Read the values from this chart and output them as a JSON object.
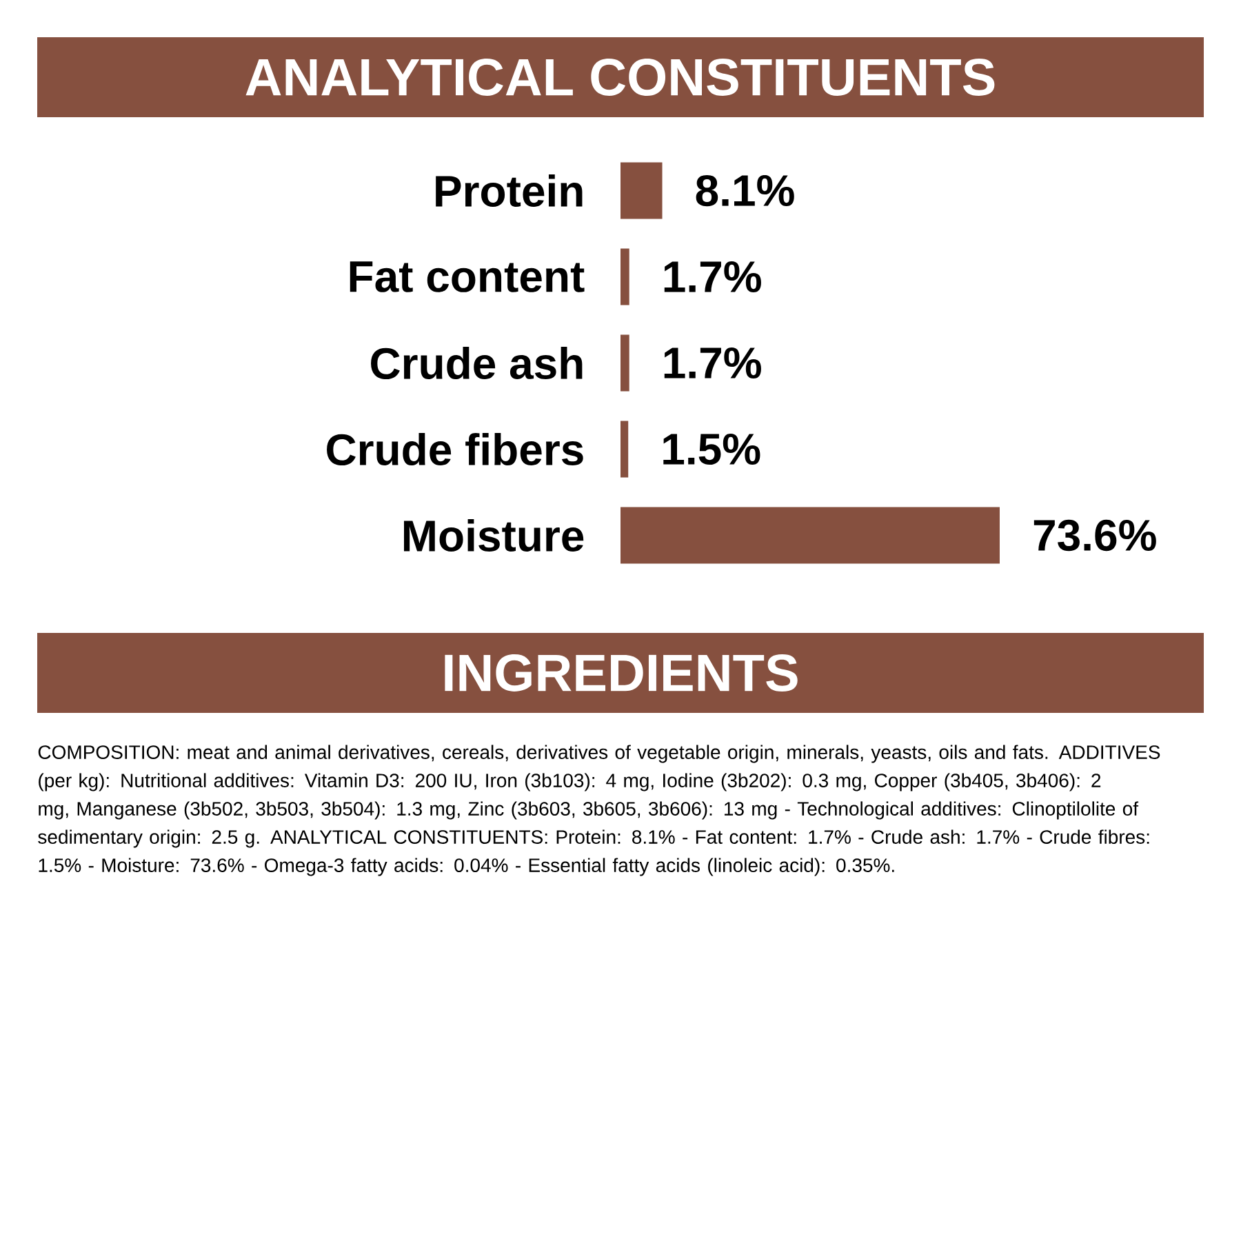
{
  "chart_data": {
    "type": "bar",
    "orientation": "horizontal",
    "title": "ANALYTICAL CONSTITUENTS",
    "categories": [
      "Protein",
      "Fat content",
      "Crude ash",
      "Crude fibers",
      "Moisture"
    ],
    "values": [
      8.1,
      1.7,
      1.7,
      1.5,
      73.6
    ],
    "value_labels": [
      "8.1%",
      "1.7%",
      "1.7%",
      "1.5%",
      "73.6%"
    ],
    "color": "#86503f",
    "annotations": [
      "INGREDIENTS",
      "COMPOSITION: meat and animal derivatives, cereals, derivatives of vegetable origin, minerals, yeasts, oils and fats. ADDITIVES (per kg): Nutritional additives: Vitamin D3: 200 IU, Iron (3b103): 4 mg, Iodine (3b202): 0.3 mg, Copper (3b405, 3b406): 2 mg, Manganese (3b502, 3b503, 3b504): 1.3 mg, Zinc (3b603, 3b605, 3b606): 13 mg - Technological additives: Clinoptilolite of sedimentary origin: 2.5 g. ANALYTICAL CONSTITUENTS: Protein: 8.1% - Fat content: 1.7% - Crude ash: 1.7% - Crude fibres: 1.5% - Moisture: 73.6% - Omega-3 fatty acids: 0.04% - Essential fatty acids (linoleic acid): 0.35%."
    ]
  }
}
